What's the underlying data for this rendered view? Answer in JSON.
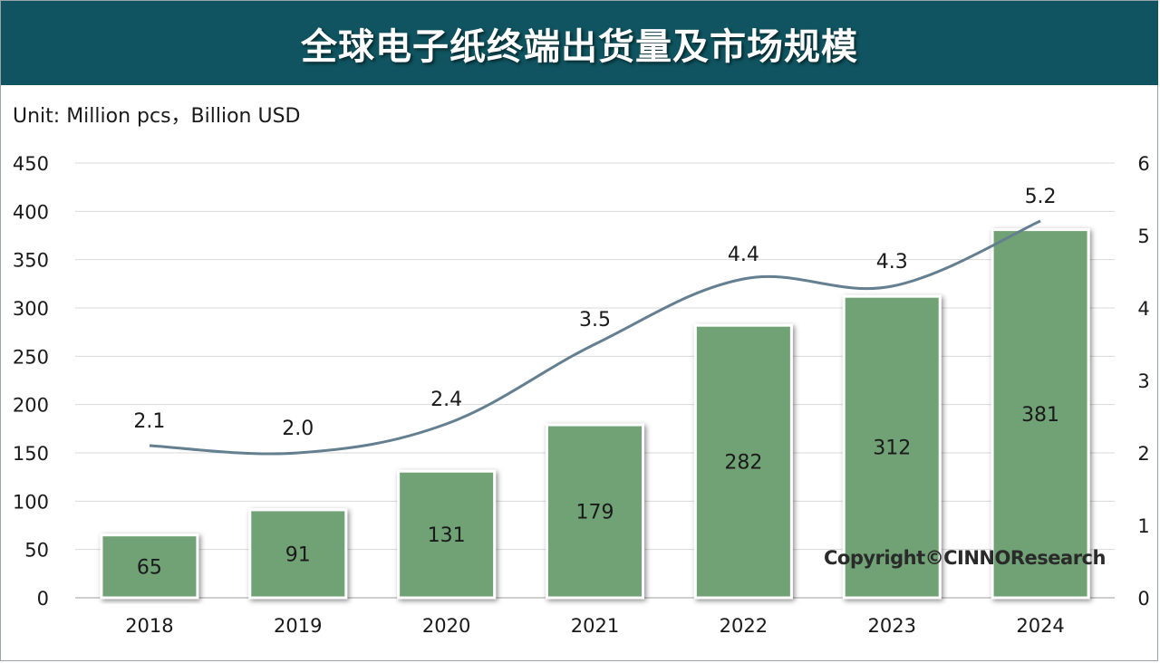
{
  "header": {
    "title": "全球电子纸终端出货量及市场规模"
  },
  "unit_label": "Unit: Million pcs，Billion USD",
  "copyright": "Copyright©CINNOResearch",
  "colors": {
    "bar": "#70a274",
    "line": "#647f8f",
    "title_bg": "#0f5460",
    "grid": "#d9d9d9"
  },
  "chart_data": {
    "type": "bar",
    "categories": [
      "2018",
      "2019",
      "2020",
      "2021",
      "2022",
      "2023",
      "2024"
    ],
    "series": [
      {
        "type": "bar",
        "axis": "left",
        "values": [
          65,
          91,
          131,
          179,
          282,
          312,
          381
        ]
      },
      {
        "type": "line",
        "axis": "right",
        "values": [
          2.1,
          2.0,
          2.4,
          3.5,
          4.4,
          4.3,
          5.2
        ]
      }
    ],
    "left_axis": {
      "ylim": [
        0,
        450
      ],
      "ticks": [
        0,
        50,
        100,
        150,
        200,
        250,
        300,
        350,
        400,
        450
      ]
    },
    "right_axis": {
      "ylim": [
        0,
        6
      ],
      "ticks": [
        0,
        1,
        2,
        3,
        4,
        5,
        6
      ]
    },
    "grid": true
  }
}
